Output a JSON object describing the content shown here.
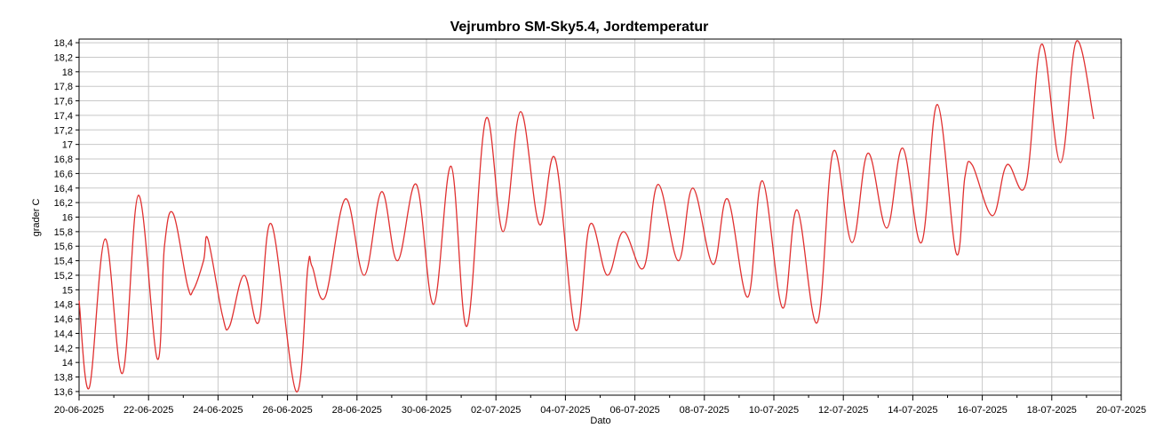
{
  "chart_data": {
    "type": "line",
    "title": "Vejrumbro SM-Sky5.4, Jordtemperatur",
    "xlabel": "Dato",
    "ylabel": "grader C",
    "grid": true,
    "legend": "none",
    "xlim": [
      "2025-06-20",
      "2025-07-20"
    ],
    "ylim": [
      13.55,
      18.45
    ],
    "x_ticks": [
      "20-06-2025",
      "22-06-2025",
      "24-06-2025",
      "26-06-2025",
      "28-06-2025",
      "30-06-2025",
      "02-07-2025",
      "04-07-2025",
      "06-07-2025",
      "08-07-2025",
      "10-07-2025",
      "12-07-2025",
      "14-07-2025",
      "16-07-2025",
      "18-07-2025",
      "20-07-2025"
    ],
    "y_ticks": [
      "13,6",
      "13,8",
      "14",
      "14,2",
      "14,4",
      "14,6",
      "14,8",
      "15",
      "15,2",
      "15,4",
      "15,6",
      "15,8",
      "16",
      "16,2",
      "16,4",
      "16,6",
      "16,8",
      "17",
      "17,2",
      "17,4",
      "17,6",
      "17,8",
      "18",
      "18,2",
      "18,4"
    ],
    "line_color": "#e03030",
    "series": [
      {
        "x": [
          "2025-06-20 00:00",
          "2025-06-20 07:00",
          "2025-06-20 18:00",
          "2025-06-21 06:00",
          "2025-06-21 17:00",
          "2025-06-22 06:00",
          "2025-06-22 11:00",
          "2025-06-22 17:00",
          "2025-06-23 03:00",
          "2025-06-23 07:00",
          "2025-06-23 14:00",
          "2025-06-23 17:00",
          "2025-06-24 03:00",
          "2025-06-24 08:00",
          "2025-06-24 18:00",
          "2025-06-25 04:00",
          "2025-06-25 13:00",
          "2025-06-26 06:00",
          "2025-06-26 14:00",
          "2025-06-26 17:00",
          "2025-06-27 02:00",
          "2025-06-27 16:00",
          "2025-06-28 05:00",
          "2025-06-28 17:00",
          "2025-06-29 04:00",
          "2025-06-29 17:00",
          "2025-06-30 05:00",
          "2025-06-30 17:00",
          "2025-07-01 04:00",
          "2025-07-01 17:00",
          "2025-07-02 05:00",
          "2025-07-02 17:00",
          "2025-07-03 06:00",
          "2025-07-03 17:00",
          "2025-07-04 07:00",
          "2025-07-04 17:00",
          "2025-07-05 05:00",
          "2025-07-05 16:00",
          "2025-07-06 06:00",
          "2025-07-06 16:00",
          "2025-07-07 06:00",
          "2025-07-07 16:00",
          "2025-07-08 06:00",
          "2025-07-08 16:00",
          "2025-07-09 06:00",
          "2025-07-09 16:00",
          "2025-07-10 06:00",
          "2025-07-10 16:00",
          "2025-07-11 06:00",
          "2025-07-11 17:00",
          "2025-07-12 06:00",
          "2025-07-12 17:00",
          "2025-07-13 06:00",
          "2025-07-13 17:00",
          "2025-07-14 06:00",
          "2025-07-14 17:00",
          "2025-07-15 06:00",
          "2025-07-15 12:00",
          "2025-07-15 17:00",
          "2025-07-16 07:00",
          "2025-07-16 17:00",
          "2025-07-17 06:00",
          "2025-07-17 17:00",
          "2025-07-18 06:00",
          "2025-07-18 17:00",
          "2025-07-19 05:00"
        ],
        "values": [
          14.85,
          13.65,
          15.7,
          13.85,
          16.3,
          14.05,
          15.6,
          16.05,
          15.05,
          15.0,
          15.4,
          15.7,
          14.65,
          14.5,
          15.2,
          14.55,
          15.9,
          13.6,
          15.3,
          15.32,
          14.9,
          16.25,
          15.2,
          16.35,
          15.4,
          16.45,
          14.8,
          16.7,
          14.5,
          17.35,
          15.8,
          17.45,
          15.9,
          16.8,
          14.45,
          15.9,
          15.2,
          15.8,
          15.3,
          16.45,
          15.4,
          16.4,
          15.35,
          16.25,
          14.9,
          16.5,
          14.75,
          16.1,
          14.55,
          16.9,
          15.65,
          16.88,
          15.85,
          16.95,
          15.65,
          17.55,
          15.5,
          16.55,
          16.72,
          16.02,
          16.72,
          16.45,
          18.38,
          16.75,
          18.42,
          17.35
        ]
      }
    ]
  }
}
